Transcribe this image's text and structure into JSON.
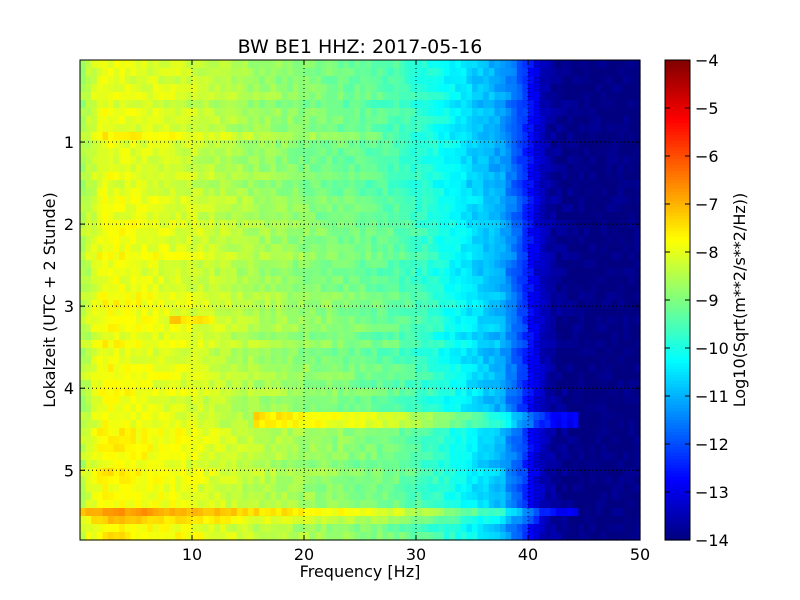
{
  "chart_data": {
    "type": "heatmap",
    "title": "BW BE1 HHZ: 2017-05-16",
    "xlabel": "Frequency [Hz]",
    "ylabel": "Lokalzeit (UTC + 2 Stunde)",
    "xlim": [
      0,
      50
    ],
    "ylim": [
      5.85,
      0
    ],
    "x_ticks": [
      {
        "value": 10,
        "label": "10"
      },
      {
        "value": 20,
        "label": "20"
      },
      {
        "value": 30,
        "label": "30"
      },
      {
        "value": 40,
        "label": "40"
      },
      {
        "value": 50,
        "label": "50"
      }
    ],
    "y_ticks": [
      {
        "value": 1,
        "label": "1"
      },
      {
        "value": 2,
        "label": "2"
      },
      {
        "value": 3,
        "label": "3"
      },
      {
        "value": 4,
        "label": "4"
      },
      {
        "value": 5,
        "label": "5"
      }
    ],
    "grid": true,
    "colorbar": {
      "label": "Log10(Sqrt(m**2/s**2/Hz))",
      "range": [
        -14,
        -4
      ],
      "colormap": "jet",
      "ticks": [
        {
          "value": -4,
          "label": "−4"
        },
        {
          "value": -5,
          "label": "−5"
        },
        {
          "value": -6,
          "label": "−6"
        },
        {
          "value": -7,
          "label": "−7"
        },
        {
          "value": -8,
          "label": "−8"
        },
        {
          "value": -9,
          "label": "−9"
        },
        {
          "value": -10,
          "label": "−10"
        },
        {
          "value": -11,
          "label": "−11"
        },
        {
          "value": -12,
          "label": "−12"
        },
        {
          "value": -13,
          "label": "−13"
        },
        {
          "value": -14,
          "label": "−14"
        }
      ]
    },
    "frequency_profile": {
      "x": [
        0,
        2,
        5,
        10,
        15,
        20,
        25,
        28,
        30,
        32,
        34,
        36,
        38,
        39,
        40,
        41,
        42,
        43,
        44,
        45,
        50
      ],
      "values": [
        -8.8,
        -8.0,
        -8.1,
        -8.3,
        -8.7,
        -9.0,
        -9.3,
        -9.5,
        -9.8,
        -10.1,
        -10.5,
        -10.9,
        -11.3,
        -11.8,
        -12.5,
        -13.3,
        -13.7,
        -13.85,
        -13.95,
        -14.0,
        -14.0
      ]
    },
    "horizontal_bands": [
      {
        "time": 4.38,
        "from_freq": 15.5,
        "to_freq": 44.5,
        "delta": 1.1
      },
      {
        "time": 5.52,
        "from_freq": 0,
        "to_freq": 44.5,
        "delta": 1.0
      },
      {
        "time": 5.6,
        "from_freq": 0,
        "to_freq": 41,
        "delta": 0.6
      },
      {
        "time": 0.9,
        "from_freq": 0,
        "to_freq": 27,
        "delta": 0.4
      },
      {
        "time": 3.15,
        "from_freq": 8,
        "to_freq": 12,
        "delta": 0.6
      }
    ]
  }
}
